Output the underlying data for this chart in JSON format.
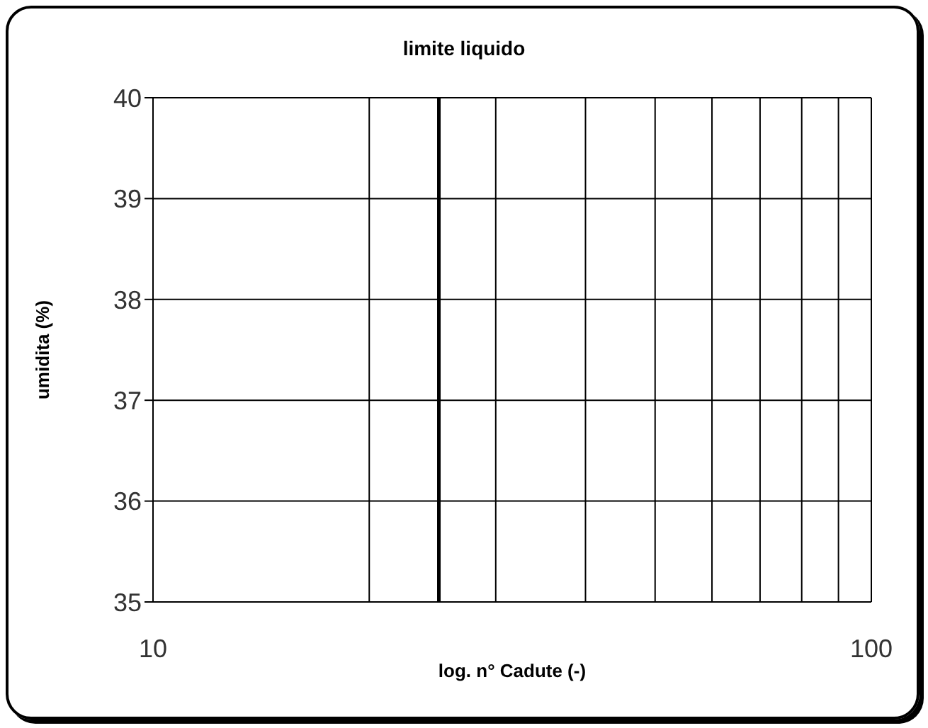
{
  "chart_data": {
    "type": "line",
    "title": "limite liquido",
    "xlabel": "log. n° Cadute (-)",
    "ylabel": "umidita (%)",
    "log": "x",
    "xlim": [
      10,
      100
    ],
    "xticks": [
      10,
      {
        "value": 20,
        "label": null
      },
      {
        "value": 30,
        "label": null
      },
      {
        "value": 40,
        "label": null
      },
      {
        "value": 50,
        "label": null
      },
      {
        "value": 60,
        "label": null
      },
      {
        "value": 70,
        "label": null
      },
      {
        "value": 80,
        "label": null
      },
      {
        "value": 90,
        "label": null
      },
      100
    ],
    "ylim": [
      35,
      40
    ],
    "yticks": [
      35,
      36,
      37,
      38,
      39,
      40
    ],
    "grid": true,
    "ref_lines": [
      {
        "axis": "x",
        "value": 25,
        "label": null,
        "color": "#000000"
      }
    ]
  }
}
